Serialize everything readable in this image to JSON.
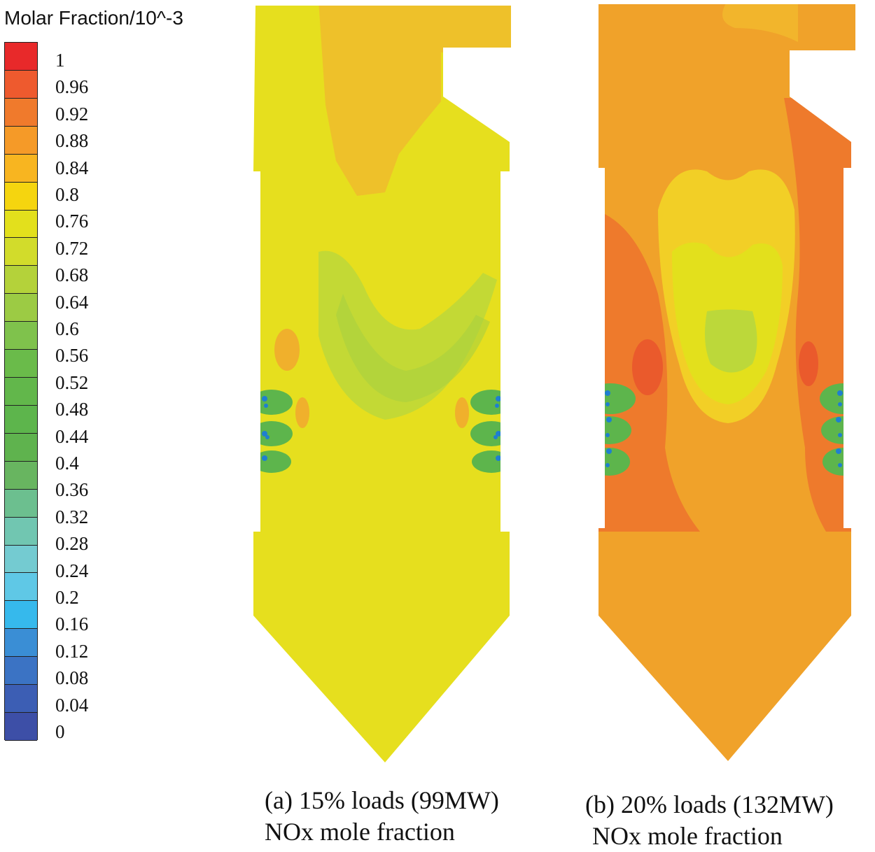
{
  "legend": {
    "title": "Molar Fraction/10^-3",
    "ticks": [
      "1",
      "0.96",
      "0.92",
      "0.88",
      "0.84",
      "0.8",
      "0.76",
      "0.72",
      "0.68",
      "0.64",
      "0.6",
      "0.56",
      "0.52",
      "0.48",
      "0.44",
      "0.4",
      "0.36",
      "0.32",
      "0.28",
      "0.24",
      "0.2",
      "0.16",
      "0.12",
      "0.08",
      "0.04",
      "0"
    ],
    "band_colors": [
      "#e8292a",
      "#ee5a2e",
      "#f07a2c",
      "#f59a28",
      "#f8b520",
      "#f5d50f",
      "#e3e01c",
      "#d2dc2b",
      "#b4d23a",
      "#9ccb44",
      "#7fc24c",
      "#6abb4a",
      "#62b74b",
      "#5db54c",
      "#5fb34e",
      "#68b560",
      "#6cbf8f",
      "#71c6b1",
      "#74cbd1",
      "#5fc8e6",
      "#36b9ec",
      "#3a8ed5",
      "#3b73c4",
      "#3c5eb4",
      "#3d4fa7"
    ]
  },
  "panels": [
    {
      "caption_line1": "(a) 15% loads (99MW)",
      "caption_line2": "NOx mole fraction",
      "colors": {
        "base": "#e6df1e",
        "upper": "#eec12a",
        "green": "#bcd83a",
        "dark_green": "#a8d040",
        "hot": "#f0b02c",
        "burner_green": "#5db54c",
        "burner_blue": "#1f7fd0"
      }
    },
    {
      "caption_line1": "(b) 20% loads (132MW)",
      "caption_line2": "NOx mole fraction",
      "colors": {
        "base": "#f0a22a",
        "upper": "#f2b52c",
        "edge": "#ee7a2c",
        "hot": "#ea5a2c",
        "inner_yellow": "#f2cf26",
        "core_yellow": "#e3e01c",
        "core_green": "#bcd83a",
        "burner_green": "#5db54c",
        "burner_blue": "#1f7fd0"
      }
    }
  ]
}
